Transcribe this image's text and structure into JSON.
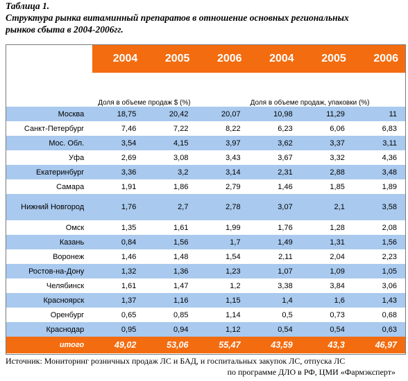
{
  "caption": {
    "line1": "Таблица 1.",
    "line2": "Структура рынка витаминный препаратов в отношение основных региональных",
    "line3": "рынков сбыта в 2004-2006гг."
  },
  "table": {
    "years": [
      "2004",
      "2005",
      "2006",
      "2004",
      "2005",
      "2006"
    ],
    "group1_label": "Доля в объеме продаж $ (%)",
    "group2_label": "Доля в объеме продаж, упаковки (%)",
    "rows": [
      {
        "city": "Москва",
        "values": [
          "18,75",
          "20,42",
          "20,07",
          "10,98",
          "11,29",
          "11"
        ]
      },
      {
        "city": "Санкт-Петербург",
        "values": [
          "7,46",
          "7,22",
          "8,22",
          "6,23",
          "6,06",
          "6,83"
        ]
      },
      {
        "city": "Мос. Обл.",
        "values": [
          "3,54",
          "4,15",
          "3,97",
          "3,62",
          "3,37",
          "3,11"
        ]
      },
      {
        "city": "Уфа",
        "values": [
          "2,69",
          "3,08",
          "3,43",
          "3,67",
          "3,32",
          "4,36"
        ]
      },
      {
        "city": "Екатеринбург",
        "values": [
          "3,36",
          "3,2",
          "3,14",
          "2,31",
          "2,88",
          "3,48"
        ]
      },
      {
        "city": "Самара",
        "values": [
          "1,91",
          "1,86",
          "2,79",
          "1,46",
          "1,85",
          "1,89"
        ]
      },
      {
        "city": "Нижний Новгород",
        "values": [
          "1,76",
          "2,7",
          "2,78",
          "3,07",
          "2,1",
          "3,58"
        ]
      },
      {
        "city": "Омск",
        "values": [
          "1,35",
          "1,61",
          "1,99",
          "1,76",
          "1,28",
          "2,08"
        ]
      },
      {
        "city": "Казань",
        "values": [
          "0,84",
          "1,56",
          "1,7",
          "1,49",
          "1,31",
          "1,56"
        ]
      },
      {
        "city": "Воронеж",
        "values": [
          "1,46",
          "1,48",
          "1,54",
          "2,11",
          "2,04",
          "2,23"
        ]
      },
      {
        "city": "Ростов-на-Дону",
        "values": [
          "1,32",
          "1,36",
          "1,23",
          "1,07",
          "1,09",
          "1,05"
        ]
      },
      {
        "city": "Челябинск",
        "values": [
          "1,61",
          "1,47",
          "1,2",
          "3,38",
          "3,84",
          "3,06"
        ]
      },
      {
        "city": "Красноярск",
        "values": [
          "1,37",
          "1,16",
          "1,15",
          "1,4",
          "1,6",
          "1,43"
        ]
      },
      {
        "city": "Оренбург",
        "values": [
          "0,65",
          "0,85",
          "1,14",
          "0,5",
          "0,73",
          "0,68"
        ]
      },
      {
        "city": "Краснодар",
        "values": [
          "0,95",
          "0,94",
          "1,12",
          "0,54",
          "0,54",
          "0,63"
        ]
      }
    ],
    "total": {
      "label": "итого",
      "values": [
        "49,02",
        "53,06",
        "55,47",
        "43,59",
        "43,3",
        "46,97"
      ]
    }
  },
  "source": {
    "line1": "Источник: Мониторинг розничных продаж ЛС и БАД, и госпитальных закупок ЛС, отпуска ЛС",
    "line2": "по программе ДЛО в РФ, ЦМИ «Фармэксперт»"
  },
  "colors": {
    "header_orange": "#f36c10",
    "row_blue": "#a9c9ee"
  }
}
